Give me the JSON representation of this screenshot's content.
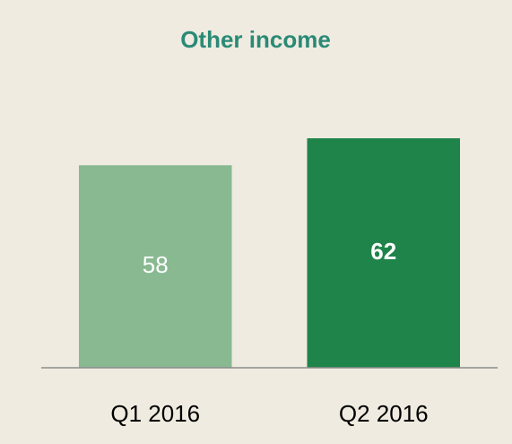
{
  "chart_data": {
    "type": "bar",
    "title": "Other income",
    "categories": [
      "Q1 2016",
      "Q2 2016"
    ],
    "values": [
      58,
      62
    ],
    "colors": [
      "#88b991",
      "#1e8449"
    ],
    "ylim": [
      28,
      68
    ]
  }
}
